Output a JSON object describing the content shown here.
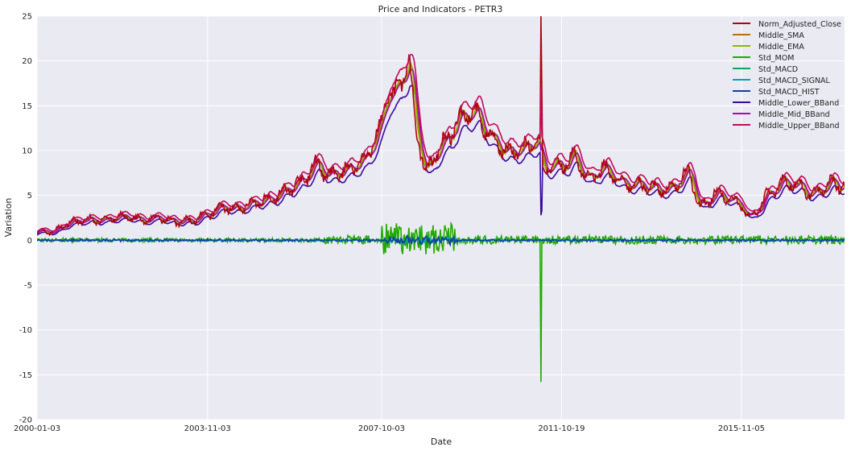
{
  "chart_data": {
    "type": "line",
    "title": "Price and Indicators - PETR3",
    "xlabel": "Date",
    "ylabel": "Variation",
    "ylim": [
      -20,
      25
    ],
    "xlim": [
      "2000-01-03",
      "2018-03-01"
    ],
    "x_ticks": [
      "2000-01-03",
      "2003-11-03",
      "2007-10-03",
      "2011-10-19",
      "2015-11-05"
    ],
    "y_ticks": [
      -20,
      -15,
      -10,
      -5,
      0,
      5,
      10,
      15,
      20,
      25
    ],
    "grid": true,
    "legend_position": "top-right",
    "background": "#eaeaf2",
    "series": [
      {
        "name": "Norm_Adjusted_Close",
        "color": "#b00010",
        "key": "norm_close"
      },
      {
        "name": "Middle_SMA",
        "color": "#c06a00",
        "key": "sma"
      },
      {
        "name": "Middle_EMA",
        "color": "#8ab800",
        "key": "ema"
      },
      {
        "name": "Std_MOM",
        "color": "#22aa00",
        "key": "mom"
      },
      {
        "name": "Std_MACD",
        "color": "#00aa66",
        "key": "macd"
      },
      {
        "name": "Std_MACD_SIGNAL",
        "color": "#00a0c0",
        "key": "macd_signal"
      },
      {
        "name": "Std_MACD_HIST",
        "color": "#1040a0",
        "key": "macd_hist"
      },
      {
        "name": "Middle_Lower_BBand",
        "color": "#3a0aa0",
        "key": "bb_lower"
      },
      {
        "name": "Middle_Mid_BBand",
        "color": "#a010b0",
        "key": "bb_mid"
      },
      {
        "name": "Middle_Upper_BBand",
        "color": "#c00a5a",
        "key": "bb_upper"
      }
    ],
    "price_points": [
      [
        "2000-01-03",
        0.9
      ],
      [
        "2000-06-01",
        1.0
      ],
      [
        "2000-09-01",
        1.9
      ],
      [
        "2001-01-01",
        2.2
      ],
      [
        "2001-06-01",
        2.3
      ],
      [
        "2002-01-01",
        2.6
      ],
      [
        "2002-06-01",
        2.1
      ],
      [
        "2002-10-01",
        2.6
      ],
      [
        "2003-03-01",
        2.0
      ],
      [
        "2003-08-01",
        2.3
      ],
      [
        "2004-01-01",
        3.2
      ],
      [
        "2004-03-01",
        3.9
      ],
      [
        "2004-06-01",
        3.4
      ],
      [
        "2005-01-01",
        4.3
      ],
      [
        "2005-06-01",
        5.0
      ],
      [
        "2006-01-01",
        6.7
      ],
      [
        "2006-05-01",
        8.8
      ],
      [
        "2006-07-01",
        7.0
      ],
      [
        "2007-01-01",
        7.9
      ],
      [
        "2007-06-01",
        9.2
      ],
      [
        "2007-10-03",
        13.0
      ],
      [
        "2007-11-15",
        16.5
      ],
      [
        "2008-01-15",
        16.0
      ],
      [
        "2008-05-15",
        20.0
      ],
      [
        "2008-07-01",
        13.0
      ],
      [
        "2008-10-01",
        7.5
      ],
      [
        "2009-01-01",
        10.0
      ],
      [
        "2009-04-01",
        11.5
      ],
      [
        "2009-08-01",
        14.0
      ],
      [
        "2009-11-01",
        14.5
      ],
      [
        "2010-04-01",
        11.0
      ],
      [
        "2010-09-01",
        9.7
      ],
      [
        "2011-02-01",
        10.5
      ],
      [
        "2011-04-25",
        10.8
      ],
      [
        "2011-05-01",
        8.0
      ],
      [
        "2011-10-19",
        8.2
      ],
      [
        "2012-02-01",
        9.4
      ],
      [
        "2012-06-01",
        6.6
      ],
      [
        "2012-10-01",
        8.2
      ],
      [
        "2013-03-01",
        6.2
      ],
      [
        "2013-08-01",
        6.2
      ],
      [
        "2014-04-01",
        5.5
      ],
      [
        "2014-09-01",
        7.9
      ],
      [
        "2014-12-01",
        3.5
      ],
      [
        "2015-04-01",
        5.3
      ],
      [
        "2015-11-05",
        4.0
      ],
      [
        "2016-01-15",
        2.2
      ],
      [
        "2016-06-01",
        5.0
      ],
      [
        "2016-10-01",
        6.5
      ],
      [
        "2017-03-01",
        6.2
      ],
      [
        "2017-06-01",
        5.0
      ],
      [
        "2017-11-01",
        6.3
      ],
      [
        "2018-03-01",
        6.1
      ]
    ],
    "spike": {
      "date": "2011-05-01",
      "norm_close_peak": 25,
      "mom_min": -15.8,
      "bb_lower_min": 2.8
    },
    "mom_range": {
      "typical_amplitude": 0.6,
      "crisis_amplitude": 3.5,
      "crisis_period": [
        "2007-10-03",
        "2009-06-01"
      ]
    }
  }
}
